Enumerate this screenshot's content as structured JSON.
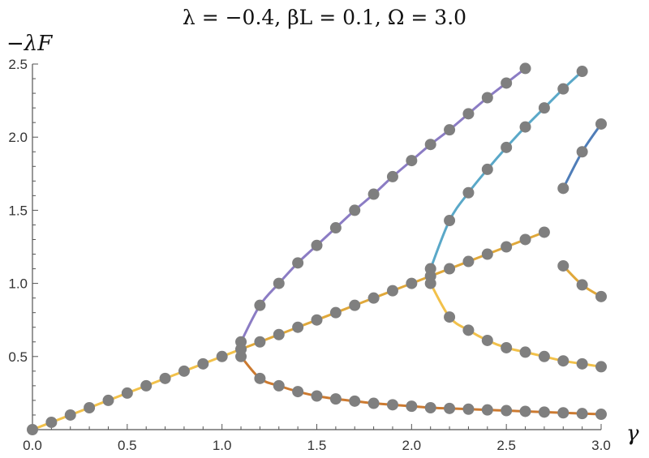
{
  "chart_data": {
    "type": "line",
    "title": "λ = −0.4, βL = 0.1, Ω = 3.0",
    "xlabel": "γ",
    "ylabel": "−λF",
    "xlim": [
      0.0,
      3.0
    ],
    "ylim": [
      0.0,
      2.5
    ],
    "x_ticks": [
      "0.0",
      "0.5",
      "1.0",
      "1.5",
      "2.0",
      "2.5",
      "3.0"
    ],
    "y_ticks": [
      "0.5",
      "1.0",
      "1.5",
      "2.0",
      "2.5"
    ],
    "grid": false,
    "colors": {
      "purple": "#8b7cc4",
      "lightblue": "#5aa8c8",
      "steelblue": "#4f7db8",
      "yellow": "#f2c14a",
      "orange": "#e0a83a",
      "darkorange": "#cc7a30",
      "point": "#7f7f7f"
    },
    "series": [
      {
        "color": "yellow",
        "x": [
          0.0,
          0.1,
          0.2,
          0.3,
          0.4,
          0.5,
          0.6,
          0.7,
          0.8,
          0.9,
          1.0,
          1.1
        ],
        "y": [
          0.0,
          0.05,
          0.1,
          0.15,
          0.2,
          0.25,
          0.3,
          0.35,
          0.4,
          0.45,
          0.5,
          0.55
        ]
      },
      {
        "color": "purple",
        "x": [
          1.1,
          1.2,
          1.3,
          1.4,
          1.5,
          1.6,
          1.7,
          1.8,
          1.9,
          2.0,
          2.1,
          2.2,
          2.3,
          2.4,
          2.5,
          2.6
        ],
        "y": [
          0.6,
          0.85,
          1.0,
          1.14,
          1.26,
          1.38,
          1.5,
          1.61,
          1.73,
          1.84,
          1.95,
          2.05,
          2.16,
          2.27,
          2.37,
          2.47
        ]
      },
      {
        "color": "darkorange",
        "x": [
          1.1,
          1.2,
          1.3,
          1.4,
          1.5,
          1.6,
          1.7,
          1.8,
          1.9,
          2.0,
          2.1,
          2.2,
          2.3,
          2.4,
          2.5,
          2.6,
          2.7,
          2.8,
          2.9,
          3.0
        ],
        "y": [
          0.5,
          0.35,
          0.3,
          0.26,
          0.23,
          0.21,
          0.195,
          0.18,
          0.17,
          0.16,
          0.15,
          0.145,
          0.14,
          0.135,
          0.13,
          0.125,
          0.12,
          0.115,
          0.11,
          0.105
        ]
      },
      {
        "color": "orange",
        "x": [
          1.1,
          1.2,
          1.3,
          1.4,
          1.5,
          1.6,
          1.7,
          1.8,
          1.9,
          2.0,
          2.1,
          2.2,
          2.3,
          2.4,
          2.5,
          2.6,
          2.7
        ],
        "y": [
          0.55,
          0.6,
          0.65,
          0.7,
          0.75,
          0.8,
          0.85,
          0.9,
          0.95,
          1.0,
          1.05,
          1.1,
          1.15,
          1.2,
          1.25,
          1.3,
          1.35
        ]
      },
      {
        "color": "lightblue",
        "x": [
          2.1,
          2.2,
          2.3,
          2.4,
          2.5,
          2.6,
          2.7,
          2.8,
          2.9
        ],
        "y": [
          1.1,
          1.43,
          1.62,
          1.78,
          1.93,
          2.07,
          2.2,
          2.33,
          2.45
        ]
      },
      {
        "color": "yellow",
        "x": [
          2.1,
          2.2,
          2.3,
          2.4,
          2.5,
          2.6,
          2.7,
          2.8,
          2.9,
          3.0
        ],
        "y": [
          1.0,
          0.77,
          0.68,
          0.61,
          0.56,
          0.53,
          0.5,
          0.47,
          0.45,
          0.43
        ]
      },
      {
        "color": "steelblue",
        "x": [
          2.8,
          2.9,
          3.0
        ],
        "y": [
          1.65,
          1.9,
          2.09
        ]
      },
      {
        "color": "orange",
        "x": [
          2.8,
          2.9,
          3.0
        ],
        "y": [
          1.12,
          0.99,
          0.91
        ]
      }
    ]
  }
}
